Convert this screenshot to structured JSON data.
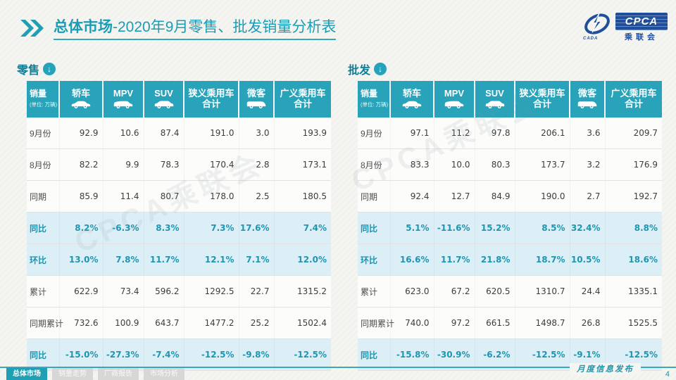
{
  "slide": {
    "title_bold": "总体市场",
    "title_rest": "-2020年9月零售、批发销量分析表",
    "watermark": "CPCA乘联会",
    "footer_note": "月度信息发布",
    "page_number": "4",
    "logo": {
      "cpca": "CPCA",
      "cada": "CADA",
      "cn": "乘联会"
    }
  },
  "colors": {
    "accent": "#1f9fb4",
    "table_header": "#29a3b9",
    "percent_row_bg": "#dceff6",
    "percent_text": "#1f95b0",
    "logo_blue": "#1e4e9c"
  },
  "columns": [
    {
      "label": "销量",
      "sub": "(单位: 万辆)"
    },
    {
      "label": "轿车",
      "icon": "sedan"
    },
    {
      "label": "MPV",
      "icon": "mpv"
    },
    {
      "label": "SUV",
      "icon": "suv"
    },
    {
      "label": "狭义乘用车",
      "label2": "合计"
    },
    {
      "label": "微客",
      "icon": "van"
    },
    {
      "label": "广义乘用车",
      "label2": "合计"
    }
  ],
  "tables": [
    {
      "id": "retail",
      "label": "零售",
      "rows": [
        {
          "label": "9月份",
          "type": "normal",
          "values": [
            "92.9",
            "10.6",
            "87.4",
            "191.0",
            "3.0",
            "193.9"
          ]
        },
        {
          "label": "8月份",
          "type": "normal",
          "values": [
            "82.2",
            "9.9",
            "78.3",
            "170.4",
            "2.8",
            "173.1"
          ]
        },
        {
          "label": "同期",
          "type": "normal",
          "values": [
            "85.9",
            "11.4",
            "80.7",
            "178.0",
            "2.5",
            "180.5"
          ]
        },
        {
          "label": "同比",
          "type": "percent",
          "values": [
            "8.2%",
            "-6.3%",
            "8.3%",
            "7.3%",
            "17.6%",
            "7.4%"
          ]
        },
        {
          "label": "环比",
          "type": "percent",
          "values": [
            "13.0%",
            "7.8%",
            "11.7%",
            "12.1%",
            "7.1%",
            "12.0%"
          ]
        },
        {
          "label": "累计",
          "type": "normal",
          "values": [
            "622.9",
            "73.4",
            "596.2",
            "1292.5",
            "22.7",
            "1315.2"
          ]
        },
        {
          "label": "同期累计",
          "type": "normal",
          "values": [
            "732.6",
            "100.9",
            "643.7",
            "1477.2",
            "25.2",
            "1502.4"
          ]
        },
        {
          "label": "同比",
          "type": "percent",
          "values": [
            "-15.0%",
            "-27.3%",
            "-7.4%",
            "-12.5%",
            "-9.8%",
            "-12.5%"
          ]
        }
      ]
    },
    {
      "id": "wholesale",
      "label": "批发",
      "rows": [
        {
          "label": "9月份",
          "type": "normal",
          "values": [
            "97.1",
            "11.2",
            "97.8",
            "206.1",
            "3.6",
            "209.7"
          ]
        },
        {
          "label": "8月份",
          "type": "normal",
          "values": [
            "83.3",
            "10.0",
            "80.3",
            "173.7",
            "3.2",
            "176.9"
          ]
        },
        {
          "label": "同期",
          "type": "normal",
          "values": [
            "92.4",
            "12.7",
            "84.9",
            "190.0",
            "2.7",
            "192.7"
          ]
        },
        {
          "label": "同比",
          "type": "percent",
          "values": [
            "5.1%",
            "-11.6%",
            "15.2%",
            "8.5%",
            "32.4%",
            "8.8%"
          ]
        },
        {
          "label": "环比",
          "type": "percent",
          "values": [
            "16.6%",
            "11.7%",
            "21.8%",
            "18.7%",
            "10.5%",
            "18.6%"
          ]
        },
        {
          "label": "累计",
          "type": "normal",
          "values": [
            "623.0",
            "67.2",
            "620.5",
            "1310.7",
            "24.4",
            "1335.1"
          ]
        },
        {
          "label": "同期累计",
          "type": "normal",
          "values": [
            "740.0",
            "97.2",
            "661.5",
            "1498.7",
            "26.8",
            "1525.5"
          ]
        },
        {
          "label": "同比",
          "type": "percent",
          "values": [
            "-15.8%",
            "-30.9%",
            "-6.2%",
            "-12.5%",
            "-9.1%",
            "-12.5%"
          ]
        }
      ]
    }
  ],
  "tabs": [
    {
      "label": "总体市场",
      "active": true
    },
    {
      "label": "销量走势",
      "active": false
    },
    {
      "label": "厂商报告",
      "active": false
    },
    {
      "label": "市场分析",
      "active": false
    }
  ]
}
